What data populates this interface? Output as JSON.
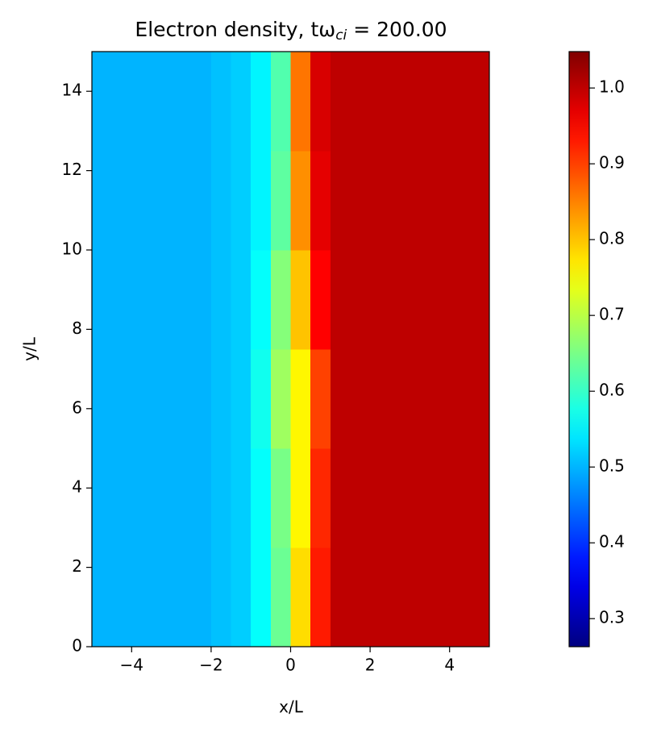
{
  "chart_data": {
    "type": "heatmap",
    "title": "Electron density, tω",
    "title_subscript": "ci",
    "title_suffix": " = 200.00",
    "x_label": "x/L",
    "y_label": "y/L",
    "colormap": "jet",
    "x": [
      -4.75,
      -4.25,
      -3.75,
      -3.25,
      -2.75,
      -2.25,
      -1.75,
      -1.25,
      -0.75,
      -0.25,
      0.25,
      0.75,
      1.25,
      1.75,
      2.25,
      2.75,
      3.25,
      3.75,
      4.25,
      4.75
    ],
    "y": [
      1.25,
      3.75,
      6.25,
      8.75,
      11.25,
      13.75
    ],
    "z": [
      [
        0.5,
        0.5,
        0.5,
        0.5,
        0.5,
        0.5,
        0.51,
        0.52,
        0.56,
        0.64,
        0.78,
        0.93,
        1.0,
        1.0,
        1.0,
        1.0,
        1.0,
        1.0,
        1.0,
        1.0
      ],
      [
        0.5,
        0.5,
        0.5,
        0.5,
        0.5,
        0.5,
        0.51,
        0.52,
        0.56,
        0.65,
        0.76,
        0.92,
        1.0,
        1.0,
        1.0,
        1.0,
        1.0,
        1.0,
        1.0,
        1.0
      ],
      [
        0.5,
        0.5,
        0.5,
        0.5,
        0.5,
        0.5,
        0.51,
        0.52,
        0.57,
        0.68,
        0.76,
        0.9,
        1.0,
        1.0,
        1.0,
        1.0,
        1.0,
        1.0,
        1.0,
        1.0
      ],
      [
        0.5,
        0.5,
        0.5,
        0.5,
        0.5,
        0.5,
        0.51,
        0.52,
        0.56,
        0.66,
        0.8,
        0.95,
        1.0,
        1.0,
        1.0,
        1.0,
        1.0,
        1.0,
        1.0,
        1.0
      ],
      [
        0.5,
        0.5,
        0.5,
        0.5,
        0.5,
        0.5,
        0.51,
        0.52,
        0.55,
        0.63,
        0.84,
        0.97,
        1.0,
        1.0,
        1.0,
        1.0,
        1.0,
        1.0,
        1.0,
        1.0
      ],
      [
        0.5,
        0.5,
        0.5,
        0.5,
        0.5,
        0.5,
        0.51,
        0.52,
        0.55,
        0.62,
        0.86,
        0.98,
        1.0,
        1.0,
        1.0,
        1.0,
        1.0,
        1.0,
        1.0,
        1.0
      ]
    ],
    "xlim": [
      -5,
      5
    ],
    "ylim": [
      0,
      15
    ],
    "xticks": [
      {
        "value": -4,
        "label": "−4"
      },
      {
        "value": -2,
        "label": "−2"
      },
      0,
      2,
      4
    ],
    "yticks": [
      0,
      2,
      4,
      6,
      8,
      10,
      12,
      14
    ],
    "clim": [
      0.263,
      1.048
    ],
    "cticks": [
      0.3,
      0.4,
      0.5,
      0.6,
      0.7,
      0.8,
      0.9,
      {
        "value": 1,
        "label": "1.0"
      }
    ]
  }
}
